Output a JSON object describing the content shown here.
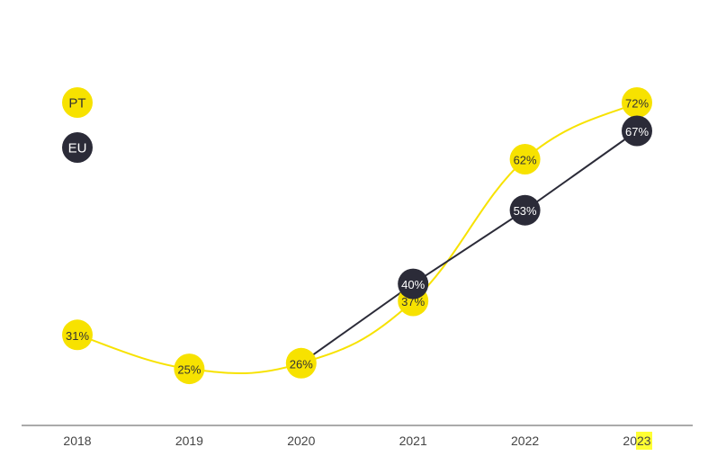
{
  "chart_data": {
    "type": "line",
    "title": "",
    "xlabel": "",
    "ylabel": "",
    "x": [
      "2018",
      "2019",
      "2020",
      "2021",
      "2022",
      "2023"
    ],
    "ylim": [
      20,
      75
    ],
    "grid": false,
    "legend_placement": "top-left",
    "series": [
      {
        "name": "PT",
        "color": "#f7e200",
        "text_color": "#333333",
        "values": [
          31,
          25,
          26,
          37,
          62,
          72
        ],
        "labels": [
          "31%",
          "25%",
          "26%",
          "37%",
          "62%",
          "72%"
        ],
        "smooth": true
      },
      {
        "name": "EU",
        "color": "#2b2b38",
        "text_color": "#ffffff",
        "values": [
          null,
          null,
          26,
          40,
          53,
          67
        ],
        "labels": [
          null,
          null,
          null,
          "40%",
          "53%",
          "67%"
        ],
        "smooth": false
      }
    ],
    "highlight_tick": {
      "index": 5,
      "color": "#ffff33"
    }
  }
}
